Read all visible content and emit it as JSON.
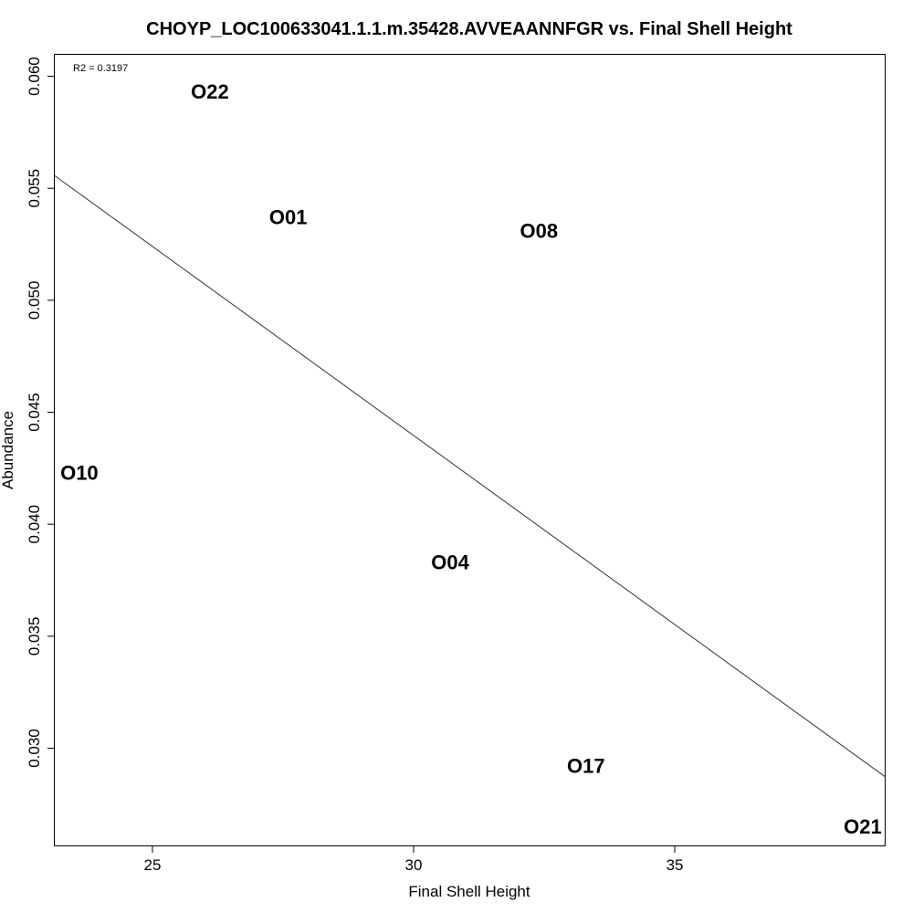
{
  "chart_data": {
    "type": "scatter",
    "title": "CHOYP_LOC100633041.1.1.m.35428.AVVEAANNFGR vs. Final Shell Height",
    "xlabel": "Final Shell Height",
    "ylabel": "Abundance",
    "annotation": "R2 = 0.3197",
    "xlim": [
      23.13,
      39.02
    ],
    "ylim": [
      0.02566,
      0.06096
    ],
    "x_ticks": [
      {
        "value": 25,
        "label": "25"
      },
      {
        "value": 30,
        "label": "30"
      },
      {
        "value": 35,
        "label": "35"
      }
    ],
    "y_ticks": [
      {
        "value": 0.03,
        "label": "0.030"
      },
      {
        "value": 0.035,
        "label": "0.035"
      },
      {
        "value": 0.04,
        "label": "0.040"
      },
      {
        "value": 0.045,
        "label": "0.045"
      },
      {
        "value": 0.05,
        "label": "0.050"
      },
      {
        "value": 0.055,
        "label": "0.055"
      },
      {
        "value": 0.06,
        "label": "0.060"
      }
    ],
    "points": [
      {
        "label": "O22",
        "x": 26.1,
        "y": 0.0593
      },
      {
        "label": "O01",
        "x": 27.6,
        "y": 0.0537
      },
      {
        "label": "O08",
        "x": 32.4,
        "y": 0.0531
      },
      {
        "label": "O10",
        "x": 23.6,
        "y": 0.0423
      },
      {
        "label": "O04",
        "x": 30.7,
        "y": 0.0383
      },
      {
        "label": "O17",
        "x": 33.3,
        "y": 0.0292
      },
      {
        "label": "O21",
        "x": 38.6,
        "y": 0.0265
      }
    ],
    "fit_line": {
      "x": [
        23.13,
        39.02
      ],
      "y": [
        0.05556,
        0.02874
      ]
    },
    "grid": false,
    "legend": "none"
  }
}
